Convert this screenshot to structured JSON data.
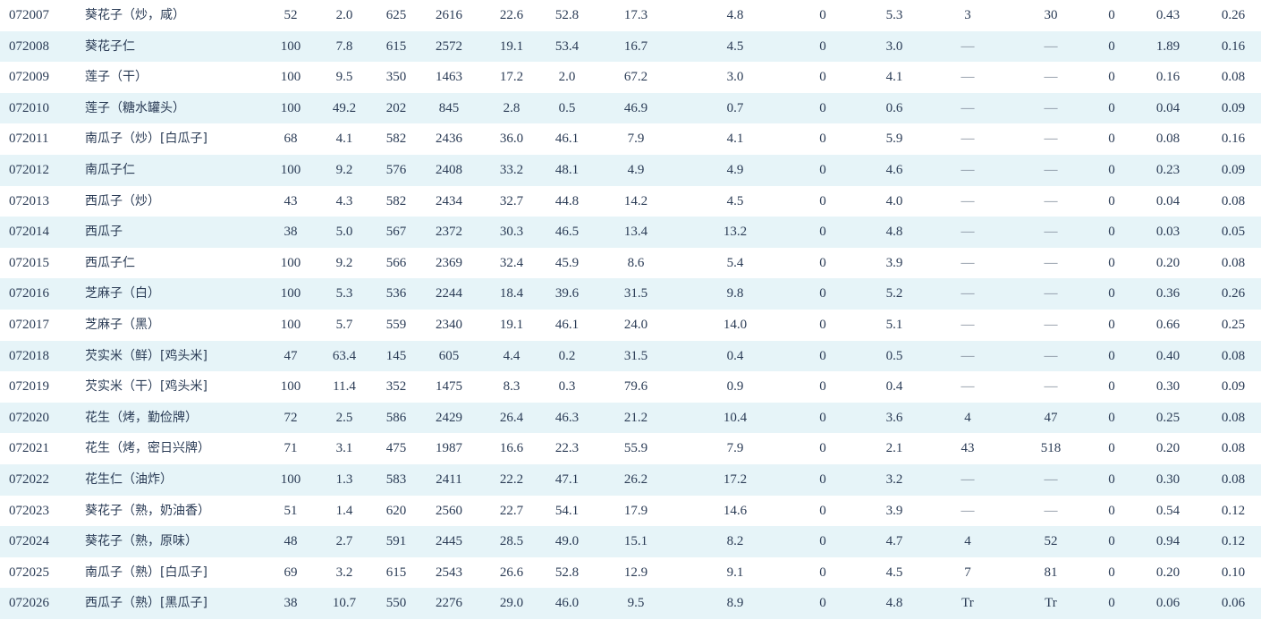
{
  "table": {
    "rows": [
      {
        "code": "072007",
        "name": "葵花子（炒，咸）",
        "v": [
          "52",
          "2.0",
          "625",
          "2616",
          "22.6",
          "52.8",
          "17.3",
          "4.8",
          "0",
          "5.3",
          "3",
          "30",
          "0",
          "0.43",
          "0.26"
        ]
      },
      {
        "code": "072008",
        "name": "葵花子仁",
        "v": [
          "100",
          "7.8",
          "615",
          "2572",
          "19.1",
          "53.4",
          "16.7",
          "4.5",
          "0",
          "3.0",
          "—",
          "—",
          "0",
          "1.89",
          "0.16"
        ]
      },
      {
        "code": "072009",
        "name": "莲子（干）",
        "v": [
          "100",
          "9.5",
          "350",
          "1463",
          "17.2",
          "2.0",
          "67.2",
          "3.0",
          "0",
          "4.1",
          "—",
          "—",
          "0",
          "0.16",
          "0.08"
        ]
      },
      {
        "code": "072010",
        "name": "莲子（糖水罐头）",
        "v": [
          "100",
          "49.2",
          "202",
          "845",
          "2.8",
          "0.5",
          "46.9",
          "0.7",
          "0",
          "0.6",
          "—",
          "—",
          "0",
          "0.04",
          "0.09"
        ]
      },
      {
        "code": "072011",
        "name": "南瓜子（炒）[白瓜子]",
        "v": [
          "68",
          "4.1",
          "582",
          "2436",
          "36.0",
          "46.1",
          "7.9",
          "4.1",
          "0",
          "5.9",
          "—",
          "—",
          "0",
          "0.08",
          "0.16"
        ]
      },
      {
        "code": "072012",
        "name": "南瓜子仁",
        "v": [
          "100",
          "9.2",
          "576",
          "2408",
          "33.2",
          "48.1",
          "4.9",
          "4.9",
          "0",
          "4.6",
          "—",
          "—",
          "0",
          "0.23",
          "0.09"
        ]
      },
      {
        "code": "072013",
        "name": "西瓜子（炒）",
        "v": [
          "43",
          "4.3",
          "582",
          "2434",
          "32.7",
          "44.8",
          "14.2",
          "4.5",
          "0",
          "4.0",
          "—",
          "—",
          "0",
          "0.04",
          "0.08"
        ]
      },
      {
        "code": "072014",
        "name": "西瓜子",
        "v": [
          "38",
          "5.0",
          "567",
          "2372",
          "30.3",
          "46.5",
          "13.4",
          "13.2",
          "0",
          "4.8",
          "—",
          "—",
          "0",
          "0.03",
          "0.05"
        ]
      },
      {
        "code": "072015",
        "name": "西瓜子仁",
        "v": [
          "100",
          "9.2",
          "566",
          "2369",
          "32.4",
          "45.9",
          "8.6",
          "5.4",
          "0",
          "3.9",
          "—",
          "—",
          "0",
          "0.20",
          "0.08"
        ]
      },
      {
        "code": "072016",
        "name": "芝麻子（白）",
        "v": [
          "100",
          "5.3",
          "536",
          "2244",
          "18.4",
          "39.6",
          "31.5",
          "9.8",
          "0",
          "5.2",
          "—",
          "—",
          "0",
          "0.36",
          "0.26"
        ]
      },
      {
        "code": "072017",
        "name": "芝麻子（黑）",
        "v": [
          "100",
          "5.7",
          "559",
          "2340",
          "19.1",
          "46.1",
          "24.0",
          "14.0",
          "0",
          "5.1",
          "—",
          "—",
          "0",
          "0.66",
          "0.25"
        ]
      },
      {
        "code": "072018",
        "name": "芡实米（鲜）[鸡头米]",
        "v": [
          "47",
          "63.4",
          "145",
          "605",
          "4.4",
          "0.2",
          "31.5",
          "0.4",
          "0",
          "0.5",
          "—",
          "—",
          "0",
          "0.40",
          "0.08"
        ]
      },
      {
        "code": "072019",
        "name": "芡实米（干）[鸡头米]",
        "v": [
          "100",
          "11.4",
          "352",
          "1475",
          "8.3",
          "0.3",
          "79.6",
          "0.9",
          "0",
          "0.4",
          "—",
          "—",
          "0",
          "0.30",
          "0.09"
        ]
      },
      {
        "code": "072020",
        "name": "花生（烤，勤俭牌）",
        "v": [
          "72",
          "2.5",
          "586",
          "2429",
          "26.4",
          "46.3",
          "21.2",
          "10.4",
          "0",
          "3.6",
          "4",
          "47",
          "0",
          "0.25",
          "0.08"
        ]
      },
      {
        "code": "072021",
        "name": "花生（烤，密日兴牌）",
        "v": [
          "71",
          "3.1",
          "475",
          "1987",
          "16.6",
          "22.3",
          "55.9",
          "7.9",
          "0",
          "2.1",
          "43",
          "518",
          "0",
          "0.20",
          "0.08"
        ]
      },
      {
        "code": "072022",
        "name": "花生仁（油炸）",
        "v": [
          "100",
          "1.3",
          "583",
          "2411",
          "22.2",
          "47.1",
          "26.2",
          "17.2",
          "0",
          "3.2",
          "—",
          "—",
          "0",
          "0.30",
          "0.08"
        ]
      },
      {
        "code": "072023",
        "name": "葵花子（熟，奶油香）",
        "v": [
          "51",
          "1.4",
          "620",
          "2560",
          "22.7",
          "54.1",
          "17.9",
          "14.6",
          "0",
          "3.9",
          "—",
          "—",
          "0",
          "0.54",
          "0.12"
        ]
      },
      {
        "code": "072024",
        "name": "葵花子（熟，原味）",
        "v": [
          "48",
          "2.7",
          "591",
          "2445",
          "28.5",
          "49.0",
          "15.1",
          "8.2",
          "0",
          "4.7",
          "4",
          "52",
          "0",
          "0.94",
          "0.12"
        ]
      },
      {
        "code": "072025",
        "name": "南瓜子（熟）[白瓜子]",
        "v": [
          "69",
          "3.2",
          "615",
          "2543",
          "26.6",
          "52.8",
          "12.9",
          "9.1",
          "0",
          "4.5",
          "7",
          "81",
          "0",
          "0.20",
          "0.10"
        ]
      },
      {
        "code": "072026",
        "name": "西瓜子（熟）[黑瓜子]",
        "v": [
          "38",
          "10.7",
          "550",
          "2276",
          "29.0",
          "46.0",
          "9.5",
          "8.9",
          "0",
          "4.8",
          "Tr",
          "Tr",
          "0",
          "0.06",
          "0.06"
        ]
      }
    ]
  }
}
